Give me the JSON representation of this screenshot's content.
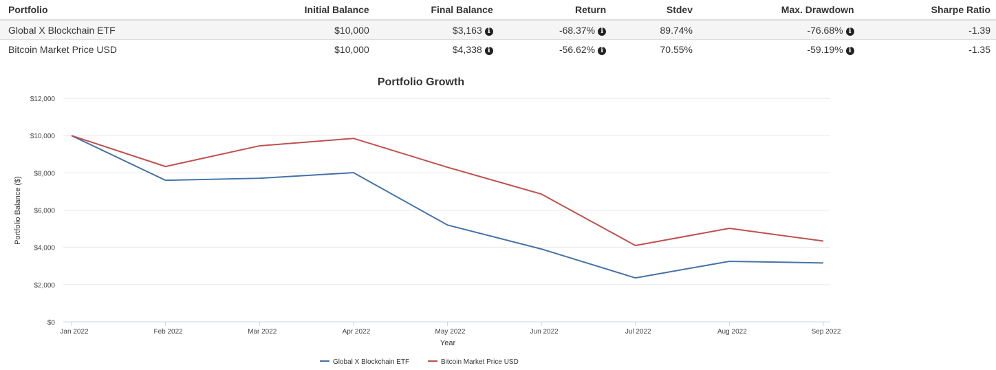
{
  "table": {
    "headers": [
      "Portfolio",
      "Initial Balance",
      "Final Balance",
      "Return",
      "Stdev",
      "Max. Drawdown",
      "Sharpe Ratio"
    ],
    "rows": [
      {
        "portfolio": "Global X Blockchain ETF",
        "initial": "$10,000",
        "final": "$3,163",
        "return": "-68.37%",
        "stdev": "89.74%",
        "drawdown": "-76.68%",
        "sharpe": "-1.39"
      },
      {
        "portfolio": "Bitcoin Market Price USD",
        "initial": "$10,000",
        "final": "$4,338",
        "return": "-56.62%",
        "stdev": "70.55%",
        "drawdown": "-59.19%",
        "sharpe": "-1.35"
      }
    ],
    "info_icon": "info-circle-icon"
  },
  "chart_data": {
    "type": "line",
    "title": "Portfolio Growth",
    "xlabel": "Year",
    "ylabel": "Portfolio Balance ($)",
    "categories": [
      "Jan 2022",
      "Feb 2022",
      "Mar 2022",
      "Apr 2022",
      "May 2022",
      "Jun 2022",
      "Jul 2022",
      "Aug 2022",
      "Sep 2022"
    ],
    "ylim": [
      0,
      12000
    ],
    "yticks": [
      0,
      2000,
      4000,
      6000,
      8000,
      10000,
      12000
    ],
    "ytick_labels": [
      "$0",
      "$2,000",
      "$4,000",
      "$6,000",
      "$8,000",
      "$10,000",
      "$12,000"
    ],
    "grid": true,
    "legend_position": "bottom-center",
    "series": [
      {
        "name": "Global X Blockchain ETF",
        "color": "#4572a7",
        "values": [
          10000,
          7600,
          7710,
          8010,
          5200,
          3910,
          2360,
          3250,
          3163
        ]
      },
      {
        "name": "Bitcoin Market Price USD",
        "color": "#c0504d",
        "values": [
          10000,
          8340,
          9450,
          9850,
          8300,
          6860,
          4100,
          5020,
          4338
        ]
      }
    ]
  }
}
